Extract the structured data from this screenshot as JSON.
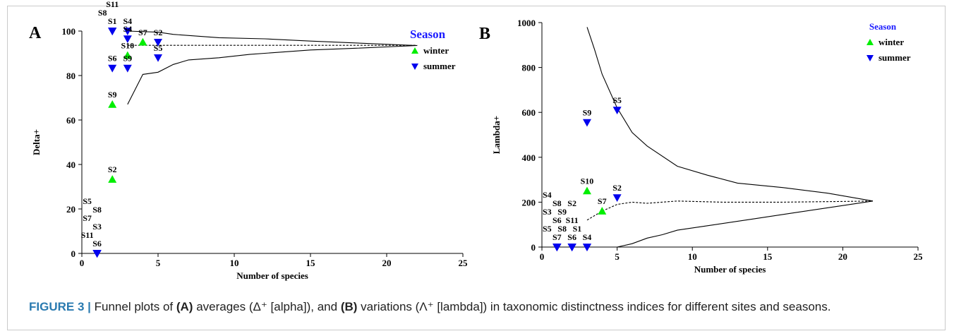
{
  "colors": {
    "winter": "#00ee00",
    "summer": "#0000ee",
    "legend_title": "#1a1aff",
    "caption_label": "#2a7ab0"
  },
  "caption": {
    "label": "FIGURE 3 |",
    "segments": [
      {
        "text": " Funnel plots of ",
        "bold": false
      },
      {
        "text": "(A)",
        "bold": true
      },
      {
        "text": " averages (Δ⁺ [alpha]), and ",
        "bold": false
      },
      {
        "text": "(B)",
        "bold": true
      },
      {
        "text": " variations (Λ⁺ [lambda]) in taxonomic distinctness indices for different sites and seasons.",
        "bold": false
      }
    ]
  },
  "chart_data": [
    {
      "type": "scatter",
      "panel": "A",
      "xlabel": "Number of species",
      "ylabel": "Delta+",
      "xlim": [
        0,
        25
      ],
      "ylim": [
        0,
        100
      ],
      "xticks": [
        0,
        5,
        10,
        15,
        20,
        25
      ],
      "yticks": [
        0,
        20,
        40,
        60,
        80,
        100
      ],
      "legend": {
        "title": "Season",
        "position": "top-right",
        "entries": [
          "winter",
          "summer"
        ]
      },
      "funnel": {
        "upper": [
          [
            3,
            100
          ],
          [
            5,
            99.5
          ],
          [
            6,
            98.5
          ],
          [
            9,
            97
          ],
          [
            12,
            96.5
          ],
          [
            15,
            95.5
          ],
          [
            22,
            93.5
          ]
        ],
        "lower": [
          [
            3,
            67
          ],
          [
            4,
            80.5
          ],
          [
            5,
            81.5
          ],
          [
            6,
            85
          ],
          [
            7,
            87
          ],
          [
            9,
            88
          ],
          [
            11,
            89.5
          ],
          [
            13,
            90.5
          ],
          [
            15,
            91.5
          ],
          [
            18,
            92.3
          ],
          [
            22,
            93.5
          ]
        ],
        "mean": [
          [
            3,
            93.6
          ],
          [
            22,
            93.6
          ]
        ]
      },
      "series": [
        {
          "name": "winter",
          "marker": "triangle-up",
          "points": [
            {
              "label": "S7",
              "x": 4,
              "y": 95
            },
            {
              "label": "S10",
              "x": 3,
              "y": 89
            },
            {
              "label": "S9",
              "x": 2,
              "y": 67
            },
            {
              "label": "S2",
              "x": 2,
              "y": 33.3
            }
          ]
        },
        {
          "name": "summer",
          "marker": "triangle-down",
          "points": [
            {
              "label": "S1",
              "x": 2,
              "y": 100
            },
            {
              "label": "S4",
              "x": 3,
              "y": 100
            },
            {
              "label": "S8",
              "x": 2,
              "y": 100
            },
            {
              "label": "S11",
              "x": 2,
              "y": 100
            },
            {
              "label": "S4",
              "x": 3,
              "y": 96.5
            },
            {
              "label": "S2",
              "x": 5,
              "y": 95
            },
            {
              "label": "S5",
              "x": 5,
              "y": 88
            },
            {
              "label": "S6",
              "x": 2,
              "y": 83.3
            },
            {
              "label": "S9",
              "x": 3,
              "y": 83.3
            },
            {
              "label": "S6",
              "x": 1,
              "y": 0
            },
            {
              "label": "S11",
              "x": 1,
              "y": 0
            },
            {
              "label": "S3",
              "x": 1,
              "y": 0
            },
            {
              "label": "S7",
              "x": 1,
              "y": 0
            },
            {
              "label": "S8",
              "x": 1,
              "y": 0
            },
            {
              "label": "S5",
              "x": 1,
              "y": 0
            }
          ]
        }
      ]
    },
    {
      "type": "scatter",
      "panel": "B",
      "xlabel": "Number of species",
      "ylabel": "Lambda+",
      "xlim": [
        0,
        25
      ],
      "ylim": [
        0,
        1000
      ],
      "xticks": [
        0,
        5,
        10,
        15,
        20,
        25
      ],
      "yticks": [
        0,
        200,
        400,
        600,
        800,
        1000
      ],
      "legend": {
        "title": "Season",
        "position": "top-right",
        "entries": [
          "winter",
          "summer"
        ]
      },
      "funnel": {
        "upper": [
          [
            3,
            980
          ],
          [
            3.5,
            880
          ],
          [
            4,
            770
          ],
          [
            5,
            620
          ],
          [
            6,
            510
          ],
          [
            7,
            450
          ],
          [
            9,
            360
          ],
          [
            11,
            320
          ],
          [
            13,
            285
          ],
          [
            16,
            265
          ],
          [
            19,
            240
          ],
          [
            22,
            205
          ]
        ],
        "lower": [
          [
            3,
            0
          ],
          [
            5,
            0
          ],
          [
            6,
            15
          ],
          [
            7,
            40
          ],
          [
            8,
            55
          ],
          [
            9,
            75
          ],
          [
            11,
            95
          ],
          [
            14,
            125
          ],
          [
            17,
            155
          ],
          [
            20,
            185
          ],
          [
            22,
            205
          ]
        ],
        "mean": [
          [
            3,
            120
          ],
          [
            4,
            160
          ],
          [
            5,
            190
          ],
          [
            6,
            200
          ],
          [
            7,
            195
          ],
          [
            9,
            205
          ],
          [
            12,
            200
          ],
          [
            16,
            200
          ],
          [
            20,
            203
          ],
          [
            22,
            205
          ]
        ]
      },
      "series": [
        {
          "name": "winter",
          "marker": "triangle-up",
          "points": [
            {
              "label": "S10",
              "x": 3,
              "y": 250
            },
            {
              "label": "S7",
              "x": 4,
              "y": 160
            }
          ]
        },
        {
          "name": "summer",
          "marker": "triangle-down",
          "points": [
            {
              "label": "S5",
              "x": 5,
              "y": 610
            },
            {
              "label": "S9",
              "x": 3,
              "y": 555
            },
            {
              "label": "S2",
              "x": 5,
              "y": 220
            },
            {
              "label": "S7",
              "x": 1,
              "y": 0
            },
            {
              "label": "S5",
              "x": 1,
              "y": 0
            },
            {
              "label": "S6",
              "x": 1,
              "y": 0
            },
            {
              "label": "S3",
              "x": 1,
              "y": 0
            },
            {
              "label": "S8",
              "x": 1,
              "y": 0
            },
            {
              "label": "S4",
              "x": 1,
              "y": 0
            },
            {
              "label": "S6",
              "x": 2,
              "y": 0
            },
            {
              "label": "S8",
              "x": 2,
              "y": 0
            },
            {
              "label": "S11",
              "x": 2,
              "y": 0
            },
            {
              "label": "S9",
              "x": 2,
              "y": 0
            },
            {
              "label": "S2",
              "x": 2,
              "y": 0
            },
            {
              "label": "S4",
              "x": 3,
              "y": 0
            },
            {
              "label": "S1",
              "x": 3,
              "y": 0
            }
          ]
        }
      ]
    }
  ]
}
